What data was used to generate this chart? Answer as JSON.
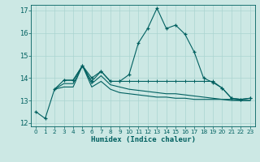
{
  "xlabel": "Humidex (Indice chaleur)",
  "background_color": "#cce8e4",
  "grid_color": "#aad4d0",
  "line_color": "#006060",
  "xlim": [
    -0.5,
    23.5
  ],
  "ylim": [
    11.85,
    17.25
  ],
  "yticks": [
    12,
    13,
    14,
    15,
    16,
    17
  ],
  "xticks": [
    0,
    1,
    2,
    3,
    4,
    5,
    6,
    7,
    8,
    9,
    10,
    11,
    12,
    13,
    14,
    15,
    16,
    17,
    18,
    19,
    20,
    21,
    22,
    23
  ],
  "series1_x": [
    0,
    1,
    2,
    3,
    4,
    5,
    6,
    7,
    8,
    9,
    10,
    11,
    12,
    13,
    14,
    15,
    16,
    17,
    18,
    19,
    20,
    21,
    22,
    23
  ],
  "series1_y": [
    12.5,
    12.2,
    13.5,
    13.9,
    13.9,
    14.55,
    14.0,
    14.3,
    13.85,
    13.85,
    14.15,
    15.55,
    16.2,
    17.1,
    16.2,
    16.35,
    15.95,
    15.15,
    14.0,
    13.8,
    13.55,
    13.1,
    13.05,
    13.1
  ],
  "series2_x": [
    3,
    4,
    5,
    6,
    7,
    8,
    9,
    10,
    11,
    12,
    13,
    14,
    15,
    16,
    17,
    18,
    19,
    20,
    21,
    22,
    23
  ],
  "series2_y": [
    13.9,
    13.9,
    14.55,
    13.85,
    14.3,
    13.85,
    13.85,
    13.85,
    13.85,
    13.85,
    13.85,
    13.85,
    13.85,
    13.85,
    13.85,
    13.85,
    13.85,
    13.55,
    13.1,
    13.05,
    13.1
  ],
  "series3_x": [
    2,
    3,
    4,
    5,
    6,
    7,
    8,
    9,
    10,
    11,
    12,
    13,
    14,
    15,
    16,
    17,
    18,
    19,
    20,
    21,
    22,
    23
  ],
  "series3_y": [
    13.5,
    13.6,
    13.6,
    14.55,
    13.6,
    13.85,
    13.5,
    13.35,
    13.3,
    13.25,
    13.2,
    13.15,
    13.15,
    13.1,
    13.1,
    13.05,
    13.05,
    13.05,
    13.05,
    13.0,
    13.0,
    13.0
  ],
  "series4_x": [
    2,
    3,
    4,
    5,
    6,
    7,
    8,
    9,
    10,
    11,
    12,
    13,
    14,
    15,
    16,
    17,
    18,
    19,
    20,
    21,
    22,
    23
  ],
  "series4_y": [
    13.5,
    13.75,
    13.75,
    14.55,
    13.75,
    14.1,
    13.7,
    13.6,
    13.5,
    13.45,
    13.4,
    13.35,
    13.3,
    13.3,
    13.25,
    13.2,
    13.15,
    13.1,
    13.05,
    13.05,
    13.0,
    13.0
  ]
}
